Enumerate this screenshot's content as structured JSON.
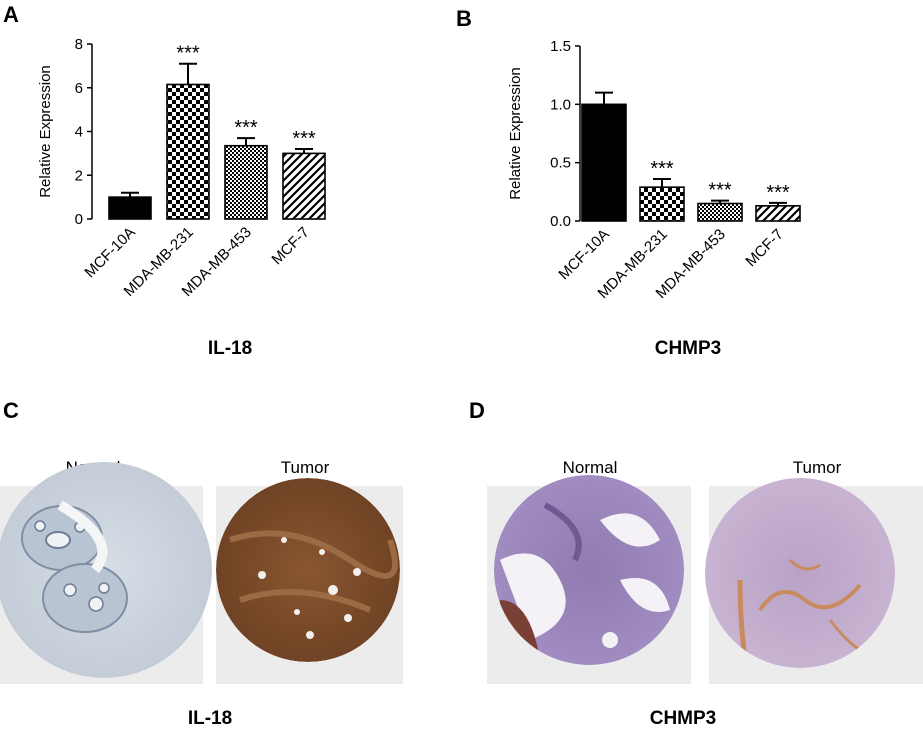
{
  "panels": {
    "A": "A",
    "B": "B",
    "C": "C",
    "D": "D"
  },
  "chart_data": [
    {
      "type": "bar",
      "panel": "A",
      "title": "IL-18",
      "xlabel": "",
      "ylabel": "Relative Expression",
      "categories": [
        "MCF-10A",
        "MDA-MB-231",
        "MDA-MB-453",
        "MCF-7"
      ],
      "values": [
        1.0,
        6.15,
        3.35,
        3.0
      ],
      "errors": [
        0.2,
        0.95,
        0.35,
        0.2
      ],
      "significance": [
        "",
        "***",
        "***",
        "***"
      ],
      "ylim": [
        0,
        8
      ],
      "yticks": [
        "0",
        "2",
        "4",
        "6",
        "8"
      ],
      "patterns": [
        "solid",
        "checker",
        "fine-checker",
        "diagonal"
      ],
      "grid": false,
      "legend": "none"
    },
    {
      "type": "bar",
      "panel": "B",
      "title": "CHMP3",
      "xlabel": "",
      "ylabel": "Relative Expression",
      "categories": [
        "MCF-10A",
        "MDA-MB-231",
        "MDA-MB-453",
        "MCF-7"
      ],
      "values": [
        1.0,
        0.29,
        0.15,
        0.13
      ],
      "errors": [
        0.1,
        0.07,
        0.025,
        0.025
      ],
      "significance": [
        "",
        "***",
        "***",
        "***"
      ],
      "ylim": [
        0,
        1.5
      ],
      "yticks": [
        "0.0",
        "0.5",
        "1.0",
        "1.5"
      ],
      "patterns": [
        "solid",
        "checker",
        "fine-checker",
        "diagonal"
      ],
      "grid": false,
      "legend": "none"
    }
  ],
  "ihc": {
    "C": {
      "normal_label": "Normal",
      "tumor_label": "Tumor",
      "gene": "IL-18"
    },
    "D": {
      "normal_label": "Normal",
      "tumor_label": "Tumor",
      "gene": "CHMP3"
    }
  },
  "colors": {
    "bar_ink": "#000000",
    "ihc_background": "#ececec",
    "normal_stain_C": "#c9d3de",
    "tumor_stain_C": "#7a4a28",
    "stain_D": "#8c78ad",
    "tumor_stain_D": "#b49ac0"
  }
}
